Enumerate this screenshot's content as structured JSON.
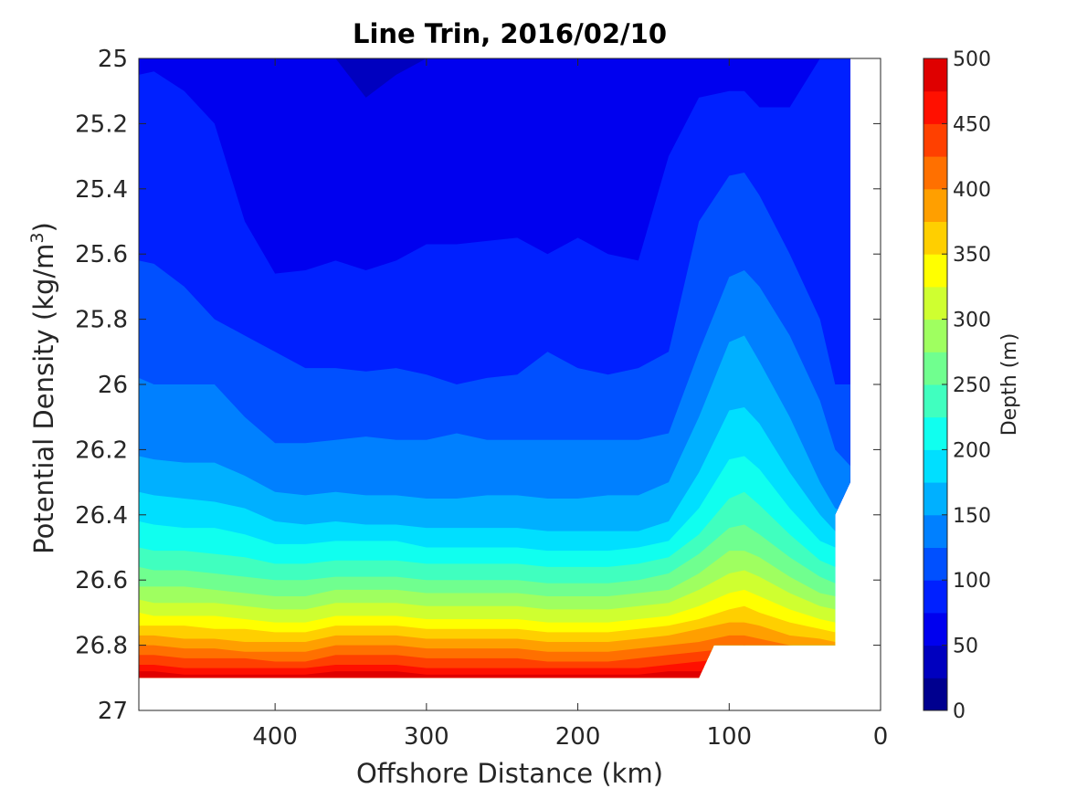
{
  "chart_data": {
    "type": "contour",
    "title": "Line Trin, 2016/02/10",
    "xlabel": "Offshore Distance (km)",
    "ylabel_main": "Potential Density (kg/m",
    "ylabel_sup": "3",
    "ylabel_close": ")",
    "xlim": [
      490,
      0
    ],
    "ylim": [
      25,
      27
    ],
    "x_reversed": true,
    "y_reversed": true,
    "x_ticks": [
      400,
      300,
      200,
      100,
      0
    ],
    "x_tick_labels": [
      "400",
      "300",
      "200",
      "100",
      "0"
    ],
    "y_ticks": [
      25,
      25.2,
      25.4,
      25.6,
      25.8,
      26,
      26.2,
      26.4,
      26.6,
      26.8,
      27
    ],
    "y_tick_labels": [
      "25",
      "25.2",
      "25.4",
      "25.6",
      "25.8",
      "26",
      "26.2",
      "26.4",
      "26.6",
      "26.8",
      "27"
    ],
    "colorbar": {
      "label": "Depth (m)",
      "min": 0,
      "max": 500,
      "step": 25,
      "tick_values": [
        0,
        50,
        100,
        150,
        200,
        250,
        300,
        350,
        400,
        450,
        500
      ],
      "tick_labels": [
        "0",
        "50",
        "100",
        "150",
        "200",
        "250",
        "300",
        "350",
        "400",
        "450",
        "500"
      ],
      "colormap": "jet",
      "colors": [
        "#00008f",
        "#0000bf",
        "#0000ef",
        "#0020ff",
        "#0050ff",
        "#0080ff",
        "#00b0ff",
        "#00dfff",
        "#10ffef",
        "#40ffbf",
        "#70ff8f",
        "#9fff60",
        "#cfff30",
        "#ffff00",
        "#ffcf00",
        "#ff9f00",
        "#ff7000",
        "#ff4000",
        "#ff1000",
        "#df0000",
        "#af0000"
      ]
    },
    "contour_levels": [
      50,
      75,
      100,
      125,
      150,
      175,
      200,
      225,
      250,
      275,
      300,
      325,
      350,
      375,
      400,
      425,
      450,
      475
    ],
    "isopycnal_depths_of_levels": {
      "x": [
        490,
        480,
        460,
        440,
        420,
        400,
        380,
        360,
        340,
        320,
        300,
        280,
        260,
        240,
        220,
        200,
        180,
        160,
        140,
        120,
        100,
        90,
        80,
        60,
        40,
        30,
        20
      ],
      "sigma_at_level": [
        [
          25.0,
          25.0,
          25.0,
          25.0,
          25.0,
          25.0,
          25.0,
          25.0,
          25.12,
          25.05,
          25.0,
          25.0,
          25.0,
          25.0,
          25.0,
          25.0,
          25.0,
          25.0,
          25.0,
          25.0,
          25.0,
          25.0,
          25.0,
          25.0,
          25.0,
          25.0,
          25.0
        ],
        [
          25.05,
          25.04,
          25.1,
          25.2,
          25.5,
          25.66,
          25.65,
          25.62,
          25.65,
          25.62,
          25.57,
          25.57,
          25.56,
          25.55,
          25.6,
          25.55,
          25.6,
          25.62,
          25.3,
          25.12,
          25.1,
          25.1,
          25.15,
          25.15,
          25.0,
          25.0,
          25.0
        ],
        [
          25.62,
          25.63,
          25.7,
          25.8,
          25.85,
          25.9,
          25.95,
          25.95,
          25.96,
          25.95,
          25.97,
          26.0,
          25.98,
          25.97,
          25.9,
          25.95,
          25.97,
          25.95,
          25.9,
          25.5,
          25.36,
          25.35,
          25.42,
          25.6,
          25.8,
          26.0,
          26.0
        ],
        [
          25.98,
          26.0,
          26.0,
          26.0,
          26.1,
          26.18,
          26.18,
          26.17,
          26.16,
          26.17,
          26.17,
          26.15,
          26.17,
          26.17,
          26.17,
          26.17,
          26.17,
          26.17,
          26.15,
          25.9,
          25.67,
          25.65,
          25.7,
          25.85,
          26.05,
          26.2,
          26.25
        ],
        [
          26.22,
          26.23,
          26.24,
          26.24,
          26.28,
          26.33,
          26.34,
          26.33,
          26.34,
          26.34,
          26.35,
          26.35,
          26.34,
          26.34,
          26.35,
          26.35,
          26.34,
          26.34,
          26.3,
          26.1,
          25.87,
          25.85,
          25.93,
          26.1,
          26.3,
          26.38,
          26.4
        ],
        [
          26.33,
          26.34,
          26.35,
          26.36,
          26.38,
          26.42,
          26.43,
          26.42,
          26.43,
          26.43,
          26.44,
          26.44,
          26.44,
          26.44,
          26.45,
          26.45,
          26.45,
          26.45,
          26.42,
          26.27,
          26.08,
          26.07,
          26.12,
          26.27,
          26.4,
          26.45,
          26.45
        ],
        [
          26.42,
          26.43,
          26.44,
          26.44,
          26.46,
          26.49,
          26.49,
          26.48,
          26.48,
          26.48,
          26.5,
          26.5,
          26.5,
          26.5,
          26.51,
          26.51,
          26.51,
          26.5,
          26.48,
          26.38,
          26.23,
          26.22,
          26.26,
          26.38,
          26.48,
          26.5,
          26.5
        ],
        [
          26.5,
          26.51,
          26.51,
          26.52,
          26.53,
          26.55,
          26.55,
          26.54,
          26.54,
          26.54,
          26.55,
          26.55,
          26.55,
          26.55,
          26.56,
          26.56,
          26.56,
          26.55,
          26.53,
          26.46,
          26.35,
          26.33,
          26.37,
          26.46,
          26.54,
          26.56,
          26.56
        ],
        [
          26.56,
          26.57,
          26.57,
          26.58,
          26.59,
          26.6,
          26.6,
          26.59,
          26.59,
          26.59,
          26.6,
          26.6,
          26.6,
          26.6,
          26.61,
          26.61,
          26.61,
          26.6,
          26.58,
          26.52,
          26.44,
          26.43,
          26.46,
          26.53,
          26.59,
          26.61,
          26.61
        ],
        [
          26.62,
          26.62,
          26.62,
          26.63,
          26.64,
          26.65,
          26.65,
          26.63,
          26.63,
          26.63,
          26.64,
          26.64,
          26.64,
          26.64,
          26.65,
          26.65,
          26.65,
          26.64,
          26.63,
          26.58,
          26.51,
          26.51,
          26.53,
          26.59,
          26.64,
          26.65,
          26.65
        ],
        [
          26.66,
          26.67,
          26.67,
          26.67,
          26.68,
          26.69,
          26.69,
          26.67,
          26.67,
          26.67,
          26.68,
          26.68,
          26.68,
          26.68,
          26.69,
          26.69,
          26.69,
          26.68,
          26.67,
          26.63,
          26.58,
          26.57,
          26.59,
          26.64,
          26.68,
          26.69,
          26.69
        ],
        [
          26.7,
          26.71,
          26.71,
          26.71,
          26.72,
          26.73,
          26.73,
          26.71,
          26.71,
          26.71,
          26.72,
          26.72,
          26.72,
          26.72,
          26.73,
          26.73,
          26.73,
          26.72,
          26.71,
          26.68,
          26.64,
          26.63,
          26.65,
          26.69,
          26.72,
          26.73,
          26.73
        ],
        [
          26.74,
          26.74,
          26.74,
          26.75,
          26.75,
          26.76,
          26.76,
          26.74,
          26.74,
          26.74,
          26.75,
          26.75,
          26.75,
          26.75,
          26.76,
          26.76,
          26.76,
          26.75,
          26.74,
          26.72,
          26.69,
          26.68,
          26.7,
          26.73,
          26.75,
          26.76,
          26.76
        ],
        [
          26.77,
          26.77,
          26.78,
          26.78,
          26.79,
          26.79,
          26.79,
          26.77,
          26.77,
          26.77,
          26.78,
          26.78,
          26.78,
          26.78,
          26.79,
          26.79,
          26.79,
          26.78,
          26.77,
          26.75,
          26.73,
          26.73,
          26.74,
          26.77,
          26.78,
          26.79,
          26.79
        ],
        [
          26.8,
          26.8,
          26.81,
          26.81,
          26.82,
          26.82,
          26.82,
          26.8,
          26.8,
          26.8,
          26.81,
          26.81,
          26.81,
          26.81,
          26.82,
          26.82,
          26.82,
          26.81,
          26.8,
          26.79,
          26.77,
          26.77,
          26.78,
          26.8,
          26.81,
          26.82,
          26.82
        ],
        [
          26.83,
          26.83,
          26.84,
          26.84,
          26.84,
          26.85,
          26.85,
          26.83,
          26.83,
          26.83,
          26.84,
          26.84,
          26.84,
          26.84,
          26.85,
          26.85,
          26.85,
          26.84,
          26.83,
          26.82,
          26.81,
          26.8,
          26.81,
          26.83,
          26.84,
          26.85,
          26.85
        ],
        [
          26.86,
          26.86,
          26.87,
          26.87,
          26.87,
          26.87,
          26.87,
          26.86,
          26.86,
          26.86,
          26.87,
          26.87,
          26.87,
          26.87,
          26.87,
          26.87,
          26.87,
          26.87,
          26.86,
          26.85,
          26.84,
          26.84,
          26.85,
          26.86,
          26.87,
          26.87,
          26.87
        ],
        [
          26.88,
          26.88,
          26.89,
          26.89,
          26.89,
          26.89,
          26.89,
          26.88,
          26.88,
          26.88,
          26.89,
          26.89,
          26.89,
          26.89,
          26.89,
          26.89,
          26.89,
          26.89,
          26.88,
          26.88,
          26.87,
          26.87,
          26.88,
          26.88,
          26.89,
          26.89,
          26.89
        ]
      ]
    },
    "data_coverage": {
      "bottom_sigma": 26.9,
      "offshore_limit_km": 490,
      "shelf_edge": [
        [
          490,
          26.9
        ],
        [
          120,
          26.9
        ],
        [
          110,
          26.8
        ],
        [
          30,
          26.8
        ],
        [
          30,
          26.4
        ],
        [
          20,
          26.3
        ],
        [
          20,
          25.0
        ]
      ]
    }
  }
}
